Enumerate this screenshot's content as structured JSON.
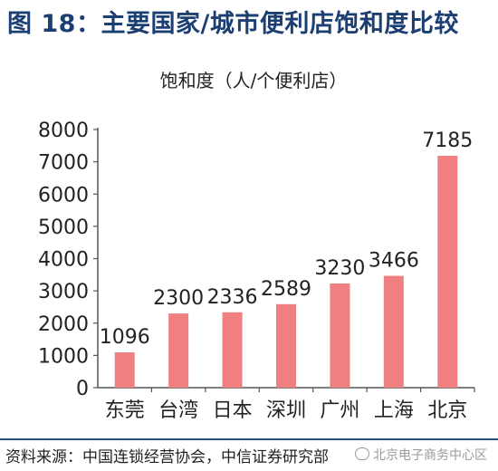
{
  "figure_title": "图 18：主要国家/城市便利店饱和度比较",
  "chart_data": {
    "type": "bar",
    "title": "饱和度（人/个便利店）",
    "categories": [
      "东莞",
      "台湾",
      "日本",
      "深圳",
      "广州",
      "上海",
      "北京"
    ],
    "values": [
      1096,
      2300,
      2336,
      2589,
      3230,
      3466,
      7185
    ],
    "ylim": [
      0,
      8000
    ],
    "yticks": [
      0,
      1000,
      2000,
      3000,
      4000,
      5000,
      6000,
      7000,
      8000
    ],
    "grid": false,
    "legend": "none",
    "bar_color": "#f08080"
  },
  "source": "资料来源：中国连锁经营协会，中信证券研究部",
  "watermark": "北京电子商务中心区",
  "watermark_icon": "wechat-icon"
}
